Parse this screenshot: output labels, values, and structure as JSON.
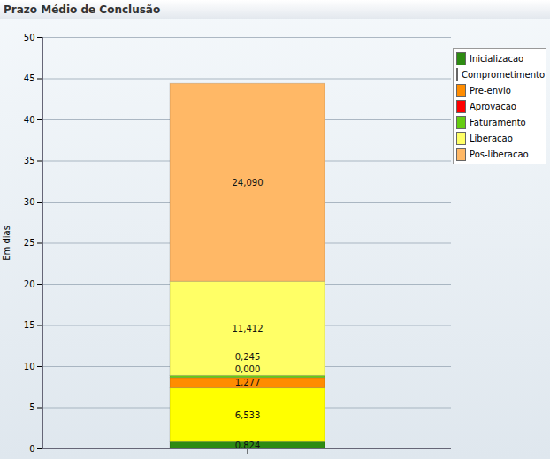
{
  "chart_data": {
    "type": "bar",
    "title": "Prazo Médio de Conclusão",
    "y_label": "Em dias",
    "categories": [
      null
    ],
    "stacked": true,
    "data_labels": true,
    "grid": true,
    "legend": "top-right",
    "ylim": [
      0,
      50
    ],
    "yticks": [
      0,
      5,
      10,
      15,
      20,
      25,
      30,
      35,
      40,
      45,
      50
    ],
    "series": [
      {
        "name": "Inicializacao",
        "color": "#2e8b12",
        "values": [
          0.824
        ],
        "value_labels": [
          "0,824"
        ]
      },
      {
        "name": "Comprometimento",
        "color": "#ffff00",
        "values": [
          6.533
        ],
        "value_labels": [
          "6,533"
        ]
      },
      {
        "name": "Pre-envio",
        "color": "#ff8c00",
        "values": [
          1.277
        ],
        "value_labels": [
          "1,277"
        ]
      },
      {
        "name": "Aprovacao",
        "color": "#ff0000",
        "values": [
          0.0
        ],
        "value_labels": [
          "0,000"
        ]
      },
      {
        "name": "Faturamento",
        "color": "#66cc11",
        "values": [
          0.245
        ],
        "value_labels": [
          "0,245"
        ]
      },
      {
        "name": "Liberacao",
        "color": "#ffff66",
        "values": [
          11.412
        ],
        "value_labels": [
          "11,412"
        ]
      },
      {
        "name": "Pos-liberacao",
        "color": "#ffb866",
        "values": [
          24.09
        ],
        "value_labels": [
          "24,090"
        ]
      }
    ]
  }
}
